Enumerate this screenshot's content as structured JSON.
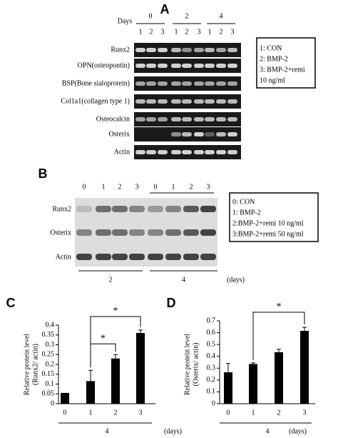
{
  "panel_a": {
    "label": "A",
    "days_label": "Days",
    "day_groups": [
      "0",
      "2",
      "4"
    ],
    "lanes": [
      "1",
      "2",
      "3",
      "1",
      "2",
      "3",
      "1",
      "2",
      "3"
    ],
    "genes": [
      "Runx2",
      "OPN(osteopontin)",
      "BSP(Bone sialoprotein)",
      "Col1a1(collagen type 1)",
      "Osteocalcin",
      "Osterix",
      "Actin"
    ],
    "legend": [
      "1: CON",
      "2: BMP-2",
      "3: BMP-2+remi",
      "10 ng/ml"
    ]
  },
  "panel_b": {
    "label": "B",
    "lanes": [
      "0",
      "1",
      "2",
      "3",
      "0",
      "1",
      "2",
      "3"
    ],
    "proteins": [
      "Runx2",
      "Osterix",
      "Actin"
    ],
    "day_groups": [
      "2",
      "4"
    ],
    "days_unit": "(days)",
    "legend": [
      "0: CON",
      "1: BMP-2",
      "2:BMP-2+remi 10 ng/ml",
      "3:BMP-2+remi 50 ng/ml"
    ]
  },
  "chart_data": [
    {
      "type": "bar",
      "panel": "C",
      "ylabel": [
        "Relative protein level",
        "(Runx2/ actin)"
      ],
      "categories": [
        "0",
        "1",
        "2",
        "3"
      ],
      "values": [
        0.055,
        0.115,
        0.23,
        0.36
      ],
      "errors": [
        null,
        0.055,
        0.02,
        0.015
      ],
      "color": "#000000",
      "ylim": [
        0,
        0.4
      ],
      "yticks": [
        0,
        0.05,
        0.1,
        0.15,
        0.2,
        0.25,
        0.3,
        0.35,
        0.4
      ],
      "group_label": "4",
      "days_unit": "(days)",
      "annotations": [
        {
          "label": "*",
          "categories": [
            "1",
            "3"
          ]
        },
        {
          "label": "*",
          "categories": [
            "1",
            "2"
          ]
        }
      ]
    },
    {
      "type": "bar",
      "panel": "D",
      "ylabel": [
        "Relative protein level",
        "(Osterix/ actin)"
      ],
      "categories": [
        "0",
        "1",
        "2",
        "3"
      ],
      "values": [
        0.265,
        0.335,
        0.435,
        0.615
      ],
      "errors": [
        0.075,
        0.01,
        0.025,
        0.03
      ],
      "color": "#000000",
      "ylim": [
        0,
        0.7
      ],
      "yticks": [
        0,
        0.1,
        0.2,
        0.3,
        0.4,
        0.5,
        0.6,
        0.7
      ],
      "group_label": "4",
      "days_unit": "(days)",
      "annotations": [
        {
          "label": "*",
          "categories": [
            "1",
            "3"
          ]
        }
      ]
    }
  ]
}
